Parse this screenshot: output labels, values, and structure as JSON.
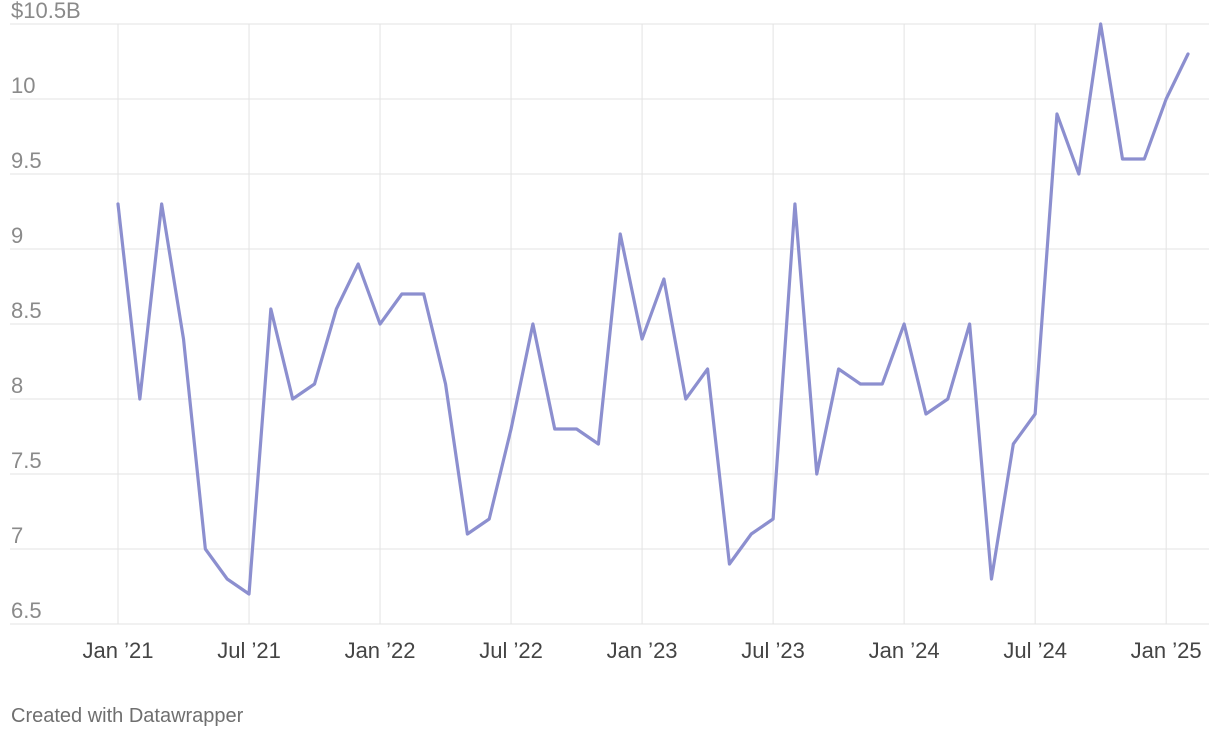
{
  "chart_data": {
    "type": "line",
    "title": "",
    "xlabel": "",
    "ylabel": "",
    "ylim": [
      6.5,
      10.5
    ],
    "y_ticks": [
      {
        "value": 10.5,
        "label": "$10.5B"
      },
      {
        "value": 10,
        "label": "10"
      },
      {
        "value": 9.5,
        "label": "9.5"
      },
      {
        "value": 9,
        "label": "9"
      },
      {
        "value": 8.5,
        "label": "8.5"
      },
      {
        "value": 8,
        "label": "8"
      },
      {
        "value": 7.5,
        "label": "7.5"
      },
      {
        "value": 7,
        "label": "7"
      },
      {
        "value": 6.5,
        "label": "6.5"
      }
    ],
    "x_ticks": [
      {
        "date": "2021-01",
        "label": "Jan ’21"
      },
      {
        "date": "2021-07",
        "label": "Jul ’21"
      },
      {
        "date": "2022-01",
        "label": "Jan ’22"
      },
      {
        "date": "2022-07",
        "label": "Jul ’22"
      },
      {
        "date": "2023-01",
        "label": "Jan ’23"
      },
      {
        "date": "2023-07",
        "label": "Jul ’23"
      },
      {
        "date": "2024-01",
        "label": "Jan ’24"
      },
      {
        "date": "2024-07",
        "label": "Jul ’24"
      },
      {
        "date": "2025-01",
        "label": "Jan ’25"
      }
    ],
    "xlim": [
      "2021-01",
      "2025-02"
    ],
    "grid": true,
    "legend": "none",
    "series": [
      {
        "color": "#8c8fcf",
        "x": [
          "2021-01",
          "2021-02",
          "2021-03",
          "2021-04",
          "2021-05",
          "2021-06",
          "2021-07",
          "2021-08",
          "2021-09",
          "2021-10",
          "2021-11",
          "2021-12",
          "2022-01",
          "2022-02",
          "2022-03",
          "2022-04",
          "2022-05",
          "2022-06",
          "2022-07",
          "2022-08",
          "2022-09",
          "2022-10",
          "2022-11",
          "2022-12",
          "2023-01",
          "2023-02",
          "2023-03",
          "2023-04",
          "2023-05",
          "2023-06",
          "2023-07",
          "2023-08",
          "2023-09",
          "2023-10",
          "2023-11",
          "2023-12",
          "2024-01",
          "2024-02",
          "2024-03",
          "2024-04",
          "2024-05",
          "2024-06",
          "2024-07",
          "2024-08",
          "2024-09",
          "2024-10",
          "2024-11",
          "2024-12",
          "2025-01",
          "2025-02"
        ],
        "values": [
          9.3,
          8.0,
          9.3,
          8.4,
          7.0,
          6.8,
          6.7,
          8.6,
          8.0,
          8.1,
          8.6,
          8.9,
          8.5,
          8.7,
          8.7,
          8.1,
          7.1,
          7.2,
          7.8,
          8.5,
          7.8,
          7.8,
          7.7,
          9.1,
          8.4,
          8.8,
          8.0,
          8.2,
          6.9,
          7.1,
          7.2,
          9.3,
          7.5,
          8.2,
          8.1,
          8.1,
          8.5,
          7.9,
          8.0,
          8.5,
          6.8,
          7.7,
          7.9,
          9.9,
          9.5,
          10.5,
          9.6,
          9.6,
          10.0,
          10.3
        ]
      }
    ]
  },
  "footer": {
    "credit": "Created with Datawrapper"
  }
}
